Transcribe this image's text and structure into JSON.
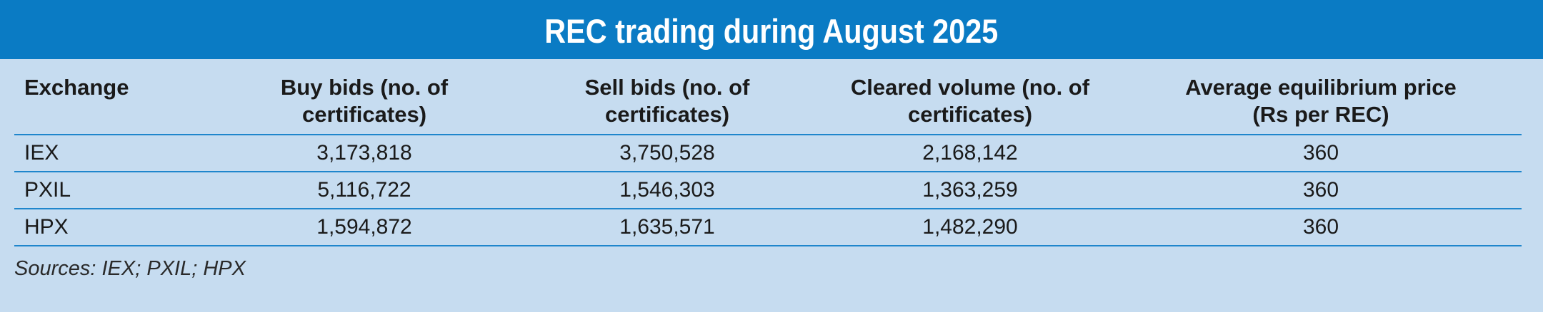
{
  "title": "REC trading during August 2025",
  "colors": {
    "title_bar": "#0a7bc4",
    "title_text": "#ffffff",
    "background": "#c6dcf0",
    "rule": "#1f86cc"
  },
  "chart_data": {
    "type": "table",
    "title": "REC trading during August 2025",
    "columns": [
      "Exchange",
      "Buy bids (no. of certificates)",
      "Sell bids (no. of certificates)",
      "Cleared volume (no. of certificates)",
      "Average equilibrium price (Rs per REC)"
    ],
    "header_lines": [
      [
        "Exchange",
        ""
      ],
      [
        "Buy bids (no. of",
        "certificates)"
      ],
      [
        "Sell bids (no. of",
        "certificates)"
      ],
      [
        "Cleared volume (no. of",
        "certificates)"
      ],
      [
        "Average equilibrium price",
        "(Rs per REC)"
      ]
    ],
    "rows": [
      [
        "IEX",
        "3,173,818",
        "3,750,528",
        "2,168,142",
        "360"
      ],
      [
        "PXIL",
        "5,116,722",
        "1,546,303",
        "1,363,259",
        "360"
      ],
      [
        "HPX",
        "1,594,872",
        "1,635,571",
        "1,482,290",
        "360"
      ]
    ],
    "source": "Sources: IEX; PXIL; HPX"
  }
}
